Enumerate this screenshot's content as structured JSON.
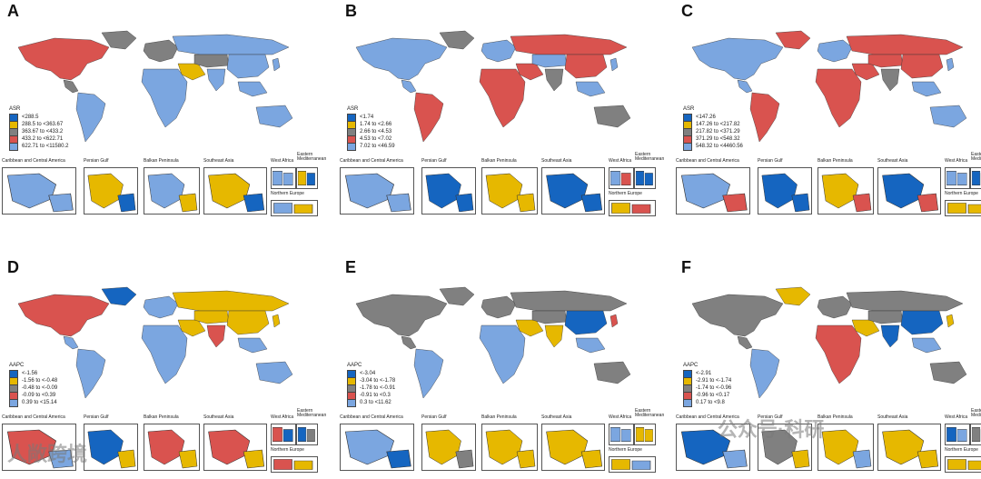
{
  "colors": {
    "c1": "#1565c0",
    "c2": "#e6b800",
    "c3": "#808080",
    "c4": "#d9534f",
    "c5": "#7ba6e0"
  },
  "inset_labels": {
    "caribbean": "Caribbean and Central America",
    "persian": "Persian Gulf",
    "balkan": "Balkan Peninsula",
    "seasia": "Southeast Asia",
    "westafrica": "West Africa",
    "eastmed": "Eastern Mediterranean",
    "northeurope": "Northern Europe"
  },
  "panels": [
    {
      "letter": "A",
      "legend_title": "ASR",
      "legend": [
        "<288.5",
        "288.5 to <363.67",
        "363.67 to <433.2",
        "433.2 to <622.71",
        "622.71 to <11580.2"
      ]
    },
    {
      "letter": "B",
      "legend_title": "ASR",
      "legend": [
        "<1.74",
        "1.74 to <2.66",
        "2.66 to <4.53",
        "4.53 to <7.02",
        "7.02 to <46.59"
      ]
    },
    {
      "letter": "C",
      "legend_title": "ASR",
      "legend": [
        "<147.26",
        "147.26 to <217.82",
        "217.82 to <371.29",
        "371.29 to <548.32",
        "548.32 to <4460.56"
      ]
    },
    {
      "letter": "D",
      "legend_title": "AAPC",
      "legend": [
        "<-1.56",
        "-1.56 to <-0.48",
        "-0.48 to <-0.09",
        "-0.09 to <0.39",
        "0.39 to <15.14"
      ]
    },
    {
      "letter": "E",
      "legend_title": "AAPC",
      "legend": [
        "<-3.04",
        "-3.04 to <-1.78",
        "-1.78 to <-0.91",
        "-0.91 to <0.3",
        "0.3 to <11.62"
      ]
    },
    {
      "letter": "F",
      "legend_title": "AAPC",
      "legend": [
        "<-2.91",
        "-2.91 to <-1.74",
        "-1.74 to <-0.96",
        "-0.96 to <0.17",
        "0.17 to <9.8"
      ]
    }
  ],
  "watermarks": {
    "left": "人敞跨境",
    "right": "公众号·科研"
  }
}
